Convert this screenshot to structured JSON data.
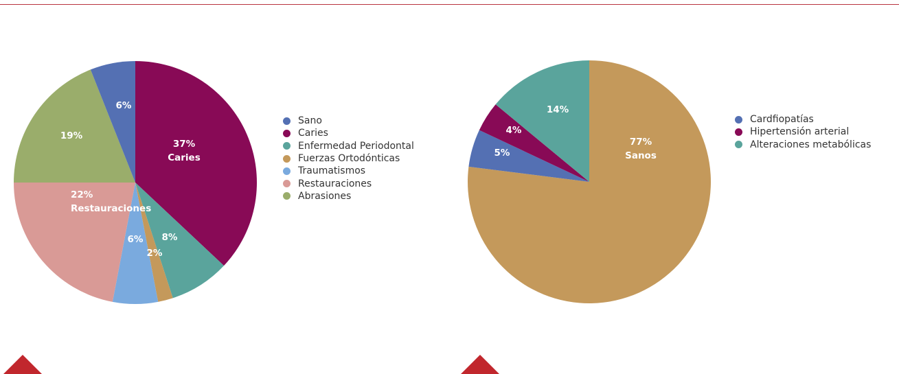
{
  "chart_data": [
    {
      "type": "pie",
      "start_angle_deg": 0,
      "slices": [
        {
          "label": "Caries",
          "value": 37,
          "display": "37%",
          "sub": "Caries",
          "color": "#880a56"
        },
        {
          "label": "Enfermedad Periodontal",
          "value": 8,
          "display": "8%",
          "sub": "",
          "color": "#5aa49c"
        },
        {
          "label": "Fuerzas Ortodónticas",
          "value": 2,
          "display": "2%",
          "sub": "",
          "color": "#c4995b"
        },
        {
          "label": "Traumatismos",
          "value": 6,
          "display": "6%",
          "sub": "",
          "color": "#7aaade"
        },
        {
          "label": "Restauraciones",
          "value": 22,
          "display": "22%",
          "sub": "Restauraciones",
          "color": "#d99a96"
        },
        {
          "label": "Abrasiones",
          "value": 19,
          "display": "19%",
          "sub": "",
          "color": "#9aad6b"
        },
        {
          "label": "Sano",
          "value": 6,
          "display": "6%",
          "sub": "",
          "color": "#5470b3"
        }
      ],
      "legend": [
        {
          "label": "Sano",
          "color": "#5470b3"
        },
        {
          "label": "Caries",
          "color": "#880a56"
        },
        {
          "label": "Enfermedad Periodontal",
          "color": "#5aa49c"
        },
        {
          "label": "Fuerzas Ortodónticas",
          "color": "#c4995b"
        },
        {
          "label": "Traumatismos",
          "color": "#7aaade"
        },
        {
          "label": "Restauraciones",
          "color": "#d99a96"
        },
        {
          "label": "Abrasiones",
          "color": "#9aad6b"
        }
      ],
      "legend_position": "right"
    },
    {
      "type": "pie",
      "start_angle_deg": 0,
      "slices": [
        {
          "label": "Sanos",
          "value": 77,
          "display": "77%",
          "sub": "Sanos",
          "color": "#c4995b"
        },
        {
          "label": "Cardfiopatías",
          "value": 5,
          "display": "5%",
          "sub": "",
          "color": "#5470b3"
        },
        {
          "label": "Hipertensión arterial",
          "value": 4,
          "display": "4%",
          "sub": "",
          "color": "#880a56"
        },
        {
          "label": "Alteraciones metabólicas",
          "value": 14,
          "display": "14%",
          "sub": "",
          "color": "#5aa49c"
        }
      ],
      "legend": [
        {
          "label": "Cardfiopatías",
          "color": "#5470b3"
        },
        {
          "label": "Hipertensión arterial",
          "color": "#880a56"
        },
        {
          "label": "Alteraciones metabólicas",
          "color": "#5aa49c"
        }
      ],
      "legend_position": "right"
    }
  ],
  "colors": {
    "top_rule": "#b8323e",
    "triangle_marker": "#c1272d",
    "label_text": "#ffffff",
    "legend_text": "#333333"
  }
}
